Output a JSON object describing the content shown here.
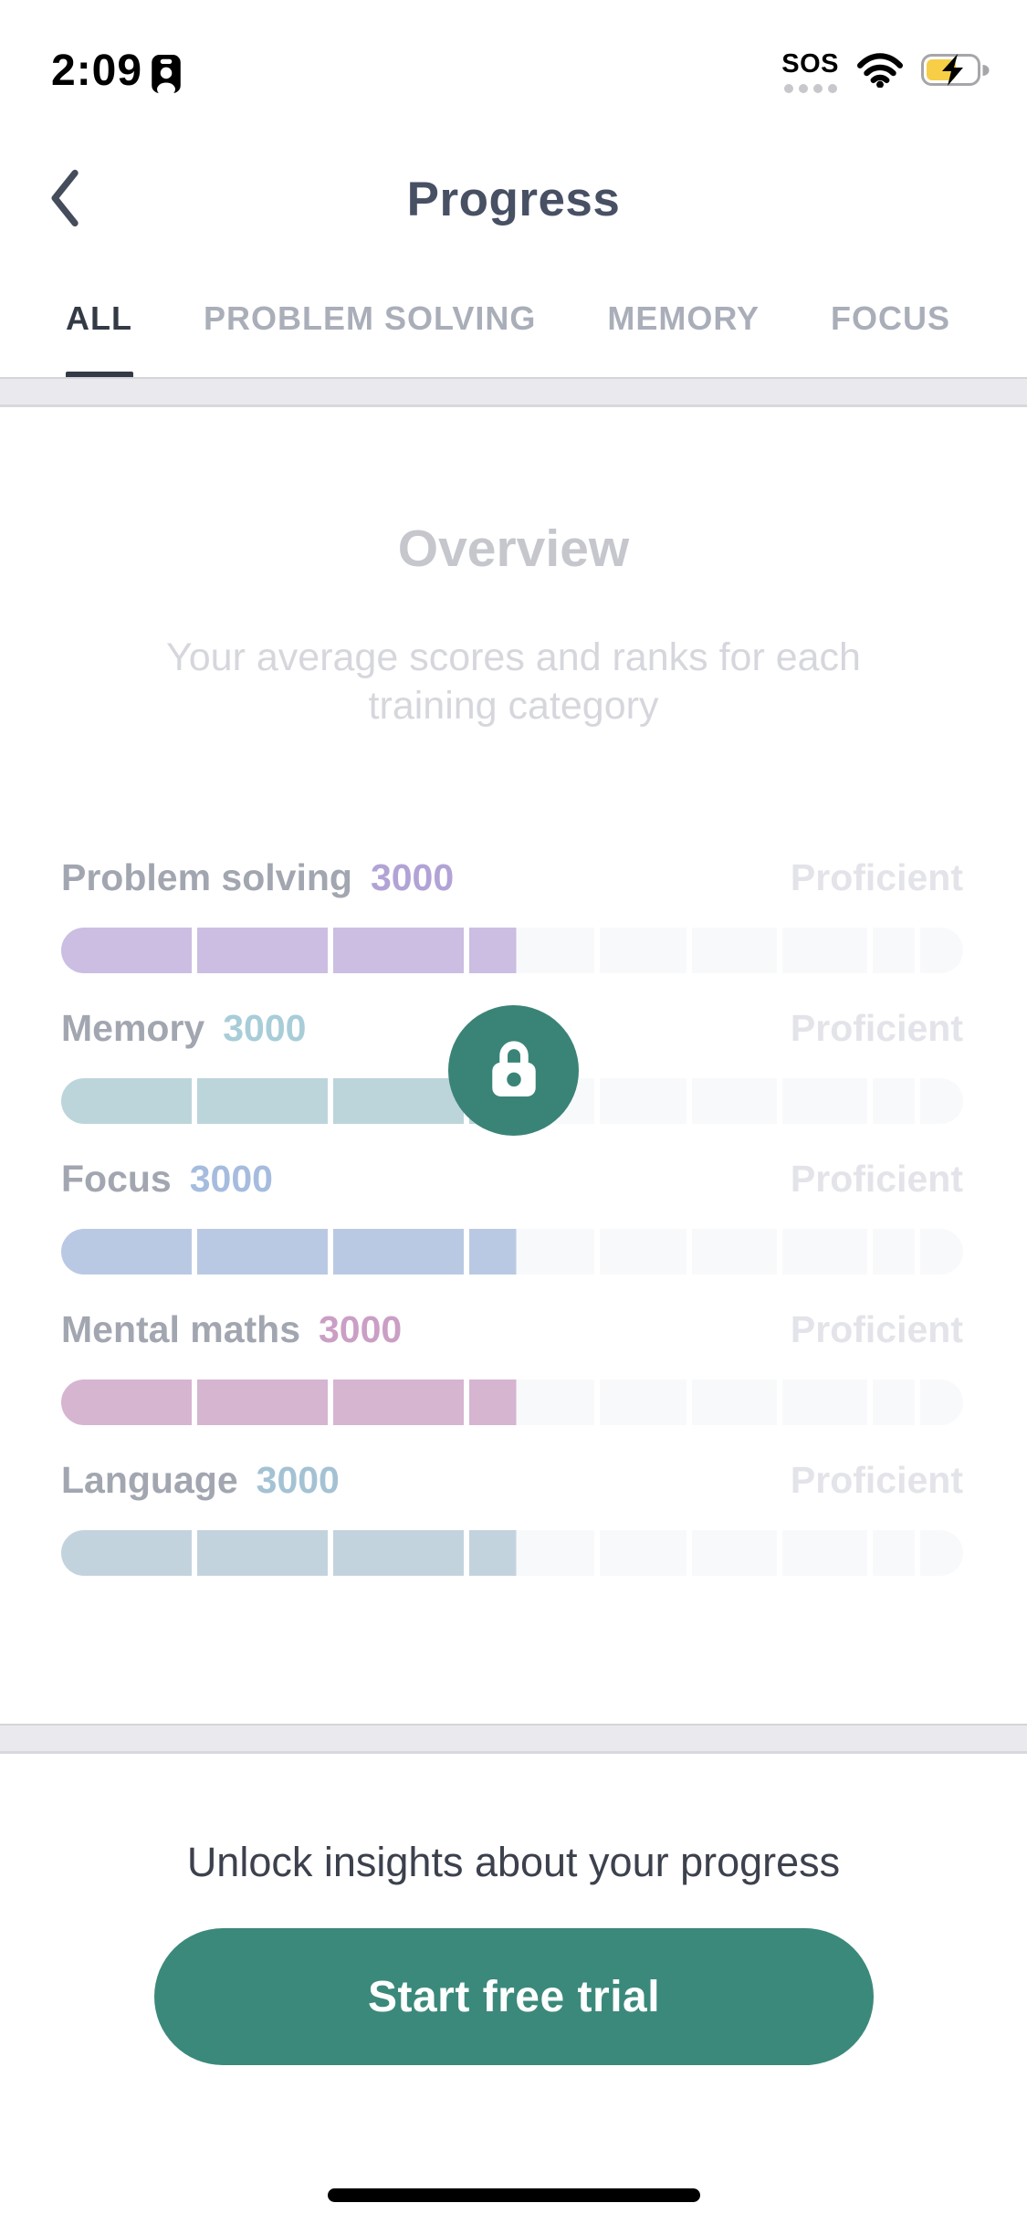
{
  "status_bar": {
    "time": "2:09",
    "carrier": "SOS"
  },
  "header": {
    "title": "Progress"
  },
  "tabs": [
    {
      "label": "ALL",
      "active": true
    },
    {
      "label": "PROBLEM SOLVING",
      "active": false
    },
    {
      "label": "MEMORY",
      "active": false
    },
    {
      "label": "FOCUS",
      "active": false
    }
  ],
  "overview": {
    "title": "Overview",
    "subtitle_lines": [
      "Your average scores and ranks for each",
      "training category"
    ]
  },
  "chart_data": {
    "type": "bar",
    "title": "Overview",
    "subtitle": "Your average scores and ranks for each training category",
    "categories": [
      "Problem solving",
      "Memory",
      "Focus",
      "Mental maths",
      "Language"
    ],
    "series": [
      {
        "name": "Average score",
        "values": [
          3000,
          3000,
          3000,
          3000,
          3000
        ]
      }
    ],
    "ranks": [
      "Proficient",
      "Proficient",
      "Proficient",
      "Proficient",
      "Proficient"
    ],
    "bar_segments": 9,
    "filled_segments": 3,
    "partial_fill": 0.375,
    "bar_colors": [
      "#cbbee2",
      "#bcd5da",
      "#bac9e3",
      "#d6b5d1",
      "#c3d3de"
    ],
    "value_colors": [
      "#b2a3d6",
      "#a8cdd8",
      "#a6bcdf",
      "#cb9fc5",
      "#a4c2d4"
    ],
    "track_color": "#f8f9fb",
    "label_color": "#a2a6b0",
    "rank_color": "#e3e4e9"
  },
  "lock": {
    "color": "#3a8477"
  },
  "paywall": {
    "message": "Unlock insights about your progress",
    "cta_label": "Start free trial",
    "cta_color": "#3b897b"
  }
}
